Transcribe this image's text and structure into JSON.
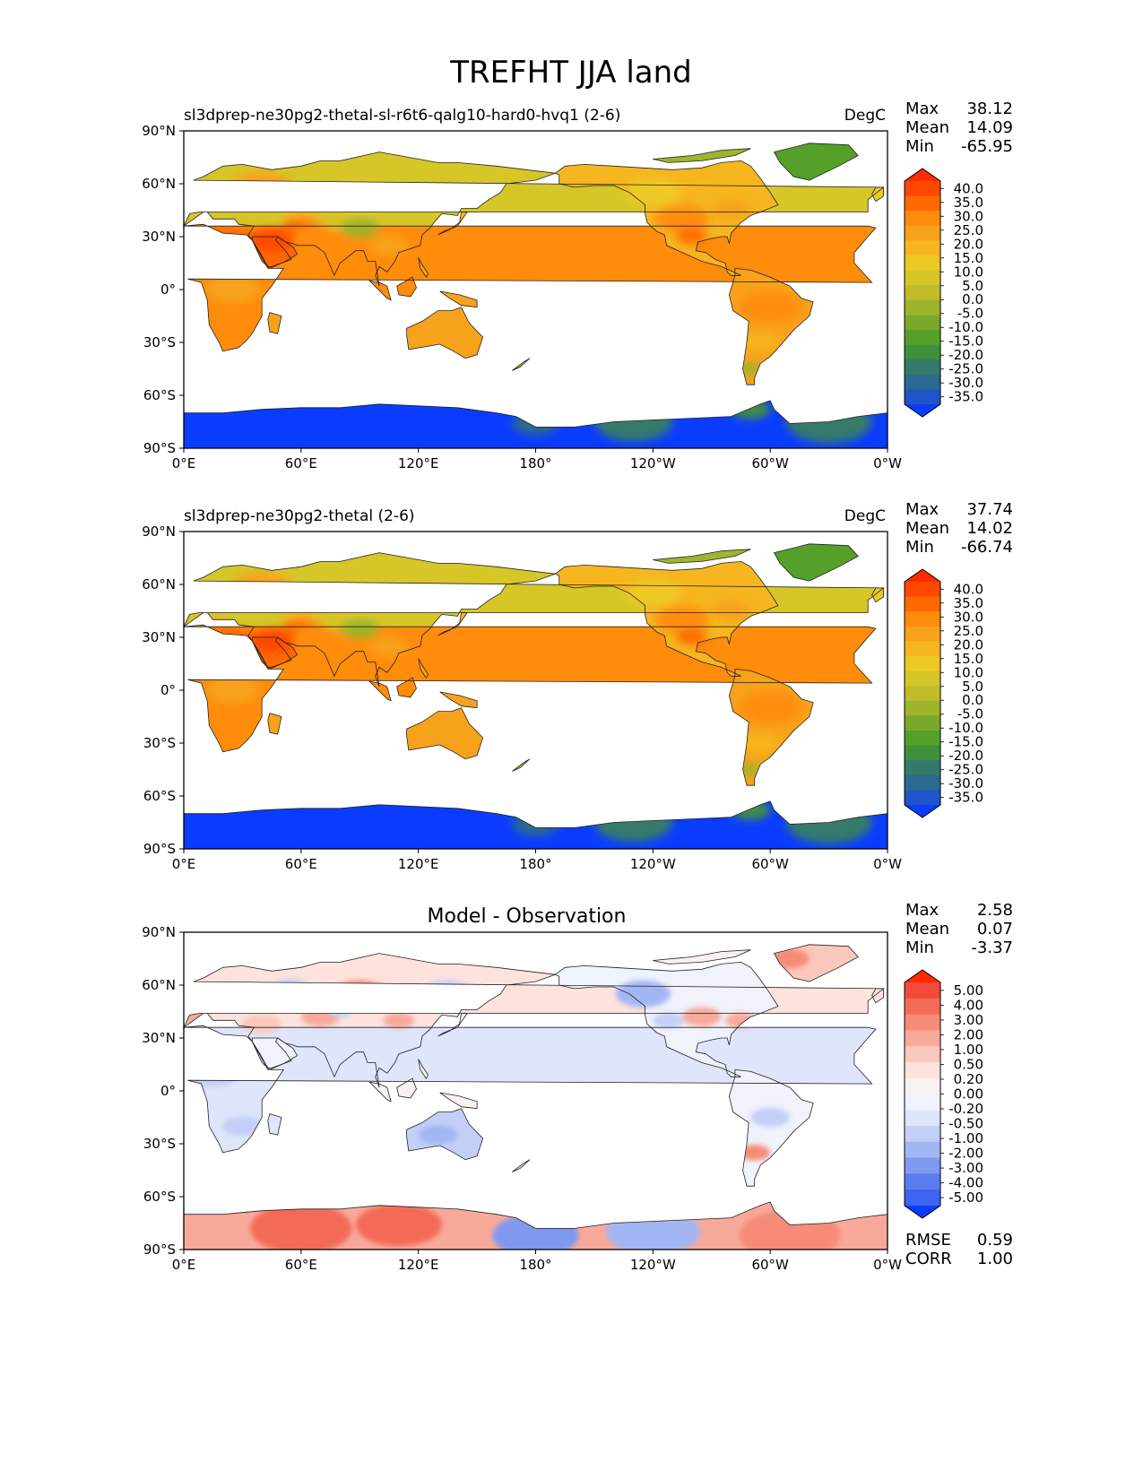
{
  "title": "TREFHT JJA land",
  "chart_data": [
    {
      "type": "heatmap",
      "left_title": "sl3dprep-ne30pg2-thetal-sl-r6t6-qalg10-hard0-hvq1 (2-6)",
      "center_title": "",
      "units": "DegC",
      "stats": [
        {
          "label": "Max",
          "value": "38.12"
        },
        {
          "label": "Mean",
          "value": "14.09"
        },
        {
          "label": "Min",
          "value": "-65.95"
        }
      ],
      "x_ticks": [
        "0°E",
        "60°E",
        "120°E",
        "180°",
        "120°W",
        "60°W",
        "0°W"
      ],
      "y_ticks": [
        "90°N",
        "60°N",
        "30°N",
        "0°",
        "30°S",
        "60°S",
        "90°S"
      ],
      "xlim": [
        0,
        360
      ],
      "ylim": [
        -90,
        90
      ],
      "colorbar": {
        "levels": [
          "40.0",
          "35.0",
          "30.0",
          "25.0",
          "20.0",
          "15.0",
          "10.0",
          "5.0",
          "0.0",
          "-5.0",
          "-10.0",
          "-15.0",
          "-20.0",
          "-25.0",
          "-30.0",
          "-35.0"
        ],
        "colors": [
          "#ff2a00",
          "#ff4800",
          "#ff6a00",
          "#ff8c0a",
          "#f7a21b",
          "#f6b61f",
          "#eec925",
          "#d6c628",
          "#bfbd2a",
          "#9db42c",
          "#7aa82c",
          "#55a028",
          "#3f8f3c",
          "#347a6a",
          "#2a6a8e",
          "#1f55c8",
          "#0a3cff"
        ],
        "extend": "both"
      },
      "map": "model"
    },
    {
      "type": "heatmap",
      "left_title": "sl3dprep-ne30pg2-thetal (2-6)",
      "center_title": "",
      "units": "DegC",
      "stats": [
        {
          "label": "Max",
          "value": "37.74"
        },
        {
          "label": "Mean",
          "value": "14.02"
        },
        {
          "label": "Min",
          "value": "-66.74"
        }
      ],
      "x_ticks": [
        "0°E",
        "60°E",
        "120°E",
        "180°",
        "120°W",
        "60°W",
        "0°W"
      ],
      "y_ticks": [
        "90°N",
        "60°N",
        "30°N",
        "0°",
        "30°S",
        "60°S",
        "90°S"
      ],
      "xlim": [
        0,
        360
      ],
      "ylim": [
        -90,
        90
      ],
      "colorbar": {
        "levels": [
          "40.0",
          "35.0",
          "30.0",
          "25.0",
          "20.0",
          "15.0",
          "10.0",
          "5.0",
          "0.0",
          "-5.0",
          "-10.0",
          "-15.0",
          "-20.0",
          "-25.0",
          "-30.0",
          "-35.0"
        ],
        "colors": [
          "#ff2a00",
          "#ff4800",
          "#ff6a00",
          "#ff8c0a",
          "#f7a21b",
          "#f6b61f",
          "#eec925",
          "#d6c628",
          "#bfbd2a",
          "#9db42c",
          "#7aa82c",
          "#55a028",
          "#3f8f3c",
          "#347a6a",
          "#2a6a8e",
          "#1f55c8",
          "#0a3cff"
        ],
        "extend": "both"
      },
      "map": "model"
    },
    {
      "type": "heatmap",
      "left_title": "",
      "center_title": "Model - Observation",
      "units": "",
      "stats": [
        {
          "label": "Max",
          "value": "2.58"
        },
        {
          "label": "Mean",
          "value": "0.07"
        },
        {
          "label": "Min",
          "value": "-3.37"
        }
      ],
      "bottom_stats": [
        {
          "label": "RMSE",
          "value": "0.59"
        },
        {
          "label": "CORR",
          "value": "1.00"
        }
      ],
      "x_ticks": [
        "0°E",
        "60°E",
        "120°E",
        "180°",
        "120°W",
        "60°W",
        "0°W"
      ],
      "y_ticks": [
        "90°N",
        "60°N",
        "30°N",
        "0°",
        "30°S",
        "60°S",
        "90°S"
      ],
      "xlim": [
        0,
        360
      ],
      "ylim": [
        -90,
        90
      ],
      "colorbar": {
        "levels": [
          "5.00",
          "4.00",
          "3.00",
          "2.00",
          "1.00",
          "0.50",
          "0.20",
          "0.00",
          "-0.20",
          "-0.50",
          "-1.00",
          "-2.00",
          "-3.00",
          "-4.00",
          "-5.00"
        ],
        "colors": [
          "#ff2a00",
          "#f2493a",
          "#f36a57",
          "#f68b78",
          "#f8a99a",
          "#fbc8bd",
          "#fde3dc",
          "#f7f1f0",
          "#f0f2fc",
          "#dfe5fb",
          "#c3cff7",
          "#a3b6f4",
          "#7f98f0",
          "#5b7cee",
          "#3f63f0",
          "#0a3cff"
        ],
        "extend": "both"
      },
      "map": "diff"
    }
  ]
}
